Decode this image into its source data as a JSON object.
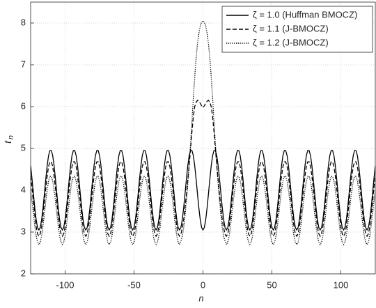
{
  "chart_data": {
    "type": "line",
    "xlabel": "n",
    "ylabel": [
      "t",
      "n"
    ],
    "xlim": [
      -125,
      125
    ],
    "xticks": [
      -100,
      -50,
      0,
      50,
      100
    ],
    "ylim": [
      2,
      8.5
    ],
    "yticks": [
      2,
      3,
      4,
      5,
      6,
      7,
      8
    ],
    "grid": true,
    "legend": "upper right",
    "x": [
      -125,
      -124,
      -123,
      -122,
      -121,
      -120,
      -119,
      -118,
      -117,
      -116,
      -115,
      -114,
      -113,
      -112,
      -111,
      -110,
      -109,
      -108,
      -107,
      -106,
      -105,
      -104,
      -103,
      -102,
      -101,
      -100,
      -99,
      -98,
      -97,
      -96,
      -95,
      -94,
      -93,
      -92,
      -91,
      -90,
      -89,
      -88,
      -87,
      -86,
      -85,
      -84,
      -83,
      -82,
      -81,
      -80,
      -79,
      -78,
      -77,
      -76,
      -75,
      -74,
      -73,
      -72,
      -71,
      -70,
      -69,
      -68,
      -67,
      -66,
      -65,
      -64,
      -63,
      -62,
      -61,
      -60,
      -59,
      -58,
      -57,
      -56,
      -55,
      -54,
      -53,
      -52,
      -51,
      -50,
      -49,
      -48,
      -47,
      -46,
      -45,
      -44,
      -43,
      -42,
      -41,
      -40,
      -39,
      -38,
      -37,
      -36,
      -35,
      -34,
      -33,
      -32,
      -31,
      -30,
      -29,
      -28,
      -27,
      -26,
      -25,
      -24,
      -23,
      -22,
      -21,
      -20,
      -19,
      -18,
      -17,
      -16,
      -15,
      -14,
      -13,
      -12,
      -11,
      -10,
      -9,
      -8,
      -7,
      -6,
      -5,
      -4,
      -3,
      -2,
      -1,
      0,
      1,
      2,
      3,
      4,
      5,
      6,
      7,
      8,
      9,
      10,
      11,
      12,
      13,
      14,
      15,
      16,
      17,
      18,
      19,
      20,
      21,
      22,
      23,
      24,
      25,
      26,
      27,
      28,
      29,
      30,
      31,
      32,
      33,
      34,
      35,
      36,
      37,
      38,
      39,
      40,
      41,
      42,
      43,
      44,
      45,
      46,
      47,
      48,
      49,
      50,
      51,
      52,
      53,
      54,
      55,
      56,
      57,
      58,
      59,
      60,
      61,
      62,
      63,
      64,
      65,
      66,
      67,
      68,
      69,
      70,
      71,
      72,
      73,
      74,
      75,
      76,
      77,
      78,
      79,
      80,
      81,
      82,
      83,
      84,
      85,
      86,
      87,
      88,
      89,
      90,
      91,
      92,
      93,
      94,
      95,
      96,
      97,
      98,
      99,
      100,
      101,
      102,
      103,
      104,
      105,
      106,
      107,
      108,
      109,
      110,
      111,
      112,
      113,
      114,
      115,
      116,
      117,
      118,
      119,
      120,
      121,
      122,
      123,
      124,
      125
    ],
    "series": [
      {
        "name": "ζ = 1.0 (Huffman BMOCZ)",
        "color": "#000000",
        "dash": "solid",
        "values": [
          4.59,
          4.27,
          3.92,
          3.58,
          3.3,
          3.11,
          3.05,
          3.11,
          3.3,
          3.58,
          3.92,
          4.27,
          4.59,
          4.83,
          4.95,
          4.95,
          4.83,
          4.59,
          4.27,
          3.92,
          3.58,
          3.3,
          3.11,
          3.05,
          3.11,
          3.3,
          3.58,
          3.92,
          4.27,
          4.59,
          4.83,
          4.95,
          4.95,
          4.83,
          4.59,
          4.27,
          3.92,
          3.58,
          3.3,
          3.11,
          3.05,
          3.11,
          3.3,
          3.58,
          3.92,
          4.27,
          4.59,
          4.83,
          4.95,
          4.95,
          4.83,
          4.59,
          4.27,
          3.92,
          3.58,
          3.3,
          3.11,
          3.05,
          3.11,
          3.3,
          3.58,
          3.92,
          4.27,
          4.59,
          4.83,
          4.95,
          4.95,
          4.83,
          4.59,
          4.27,
          3.92,
          3.58,
          3.3,
          3.11,
          3.05,
          3.11,
          3.3,
          3.58,
          3.92,
          4.27,
          4.59,
          4.83,
          4.95,
          4.95,
          4.83,
          4.59,
          4.27,
          3.92,
          3.58,
          3.3,
          3.11,
          3.05,
          3.11,
          3.3,
          3.58,
          3.92,
          4.27,
          4.59,
          4.83,
          4.95,
          4.95,
          4.83,
          4.59,
          4.27,
          3.92,
          3.58,
          3.3,
          3.11,
          3.05,
          3.11,
          3.3,
          3.58,
          3.92,
          4.27,
          4.59,
          4.83,
          4.95,
          4.95,
          4.83,
          4.59,
          4.27,
          3.92,
          3.58,
          3.3,
          3.11,
          3.05,
          3.11,
          3.3,
          3.58,
          3.92,
          4.27,
          4.59,
          4.83,
          4.95,
          4.95,
          4.83,
          4.59,
          4.27,
          3.92,
          3.58,
          3.3,
          3.11,
          3.05,
          3.11,
          3.3,
          3.58,
          3.92,
          4.27,
          4.59,
          4.83,
          4.95,
          4.95,
          4.83,
          4.59,
          4.27,
          3.92,
          3.58,
          3.3,
          3.11,
          3.05,
          3.11,
          3.3,
          3.58,
          3.92,
          4.27,
          4.59,
          4.83,
          4.95,
          4.95,
          4.83,
          4.59,
          4.27,
          3.92,
          3.58,
          3.3,
          3.11,
          3.05,
          3.11,
          3.3,
          3.58,
          3.92,
          4.27,
          4.59,
          4.83,
          4.95,
          4.95,
          4.83,
          4.59,
          4.27,
          3.92,
          3.58,
          3.3,
          3.11,
          3.05,
          3.11,
          3.3,
          3.58,
          3.92,
          4.27,
          4.59,
          4.83,
          4.95,
          4.95,
          4.83,
          4.59,
          4.27,
          3.92,
          3.58,
          3.3,
          3.11,
          3.05,
          3.11,
          3.3,
          3.58,
          3.92,
          4.27,
          4.59,
          4.83,
          4.95,
          4.95,
          4.83,
          4.59,
          4.27,
          3.92,
          3.58,
          3.3,
          3.11,
          3.05,
          3.11,
          3.3,
          3.58,
          3.92,
          4.27,
          4.59,
          4.83,
          4.95,
          4.95,
          4.83,
          4.59,
          4.27,
          3.92,
          3.58,
          3.3,
          3.11,
          3.05,
          3.11,
          3.3,
          3.58,
          3.92,
          4.27,
          4.59
        ]
      },
      {
        "name": "ζ = 1.1 (J-BMOCZ)",
        "color": "#000000",
        "dash": "dashed",
        "values": [
          4.34,
          4.05,
          3.72,
          3.4,
          3.13,
          2.96,
          2.9,
          2.96,
          3.13,
          3.4,
          3.72,
          4.05,
          4.34,
          4.57,
          4.68,
          4.68,
          4.57,
          4.34,
          4.05,
          3.72,
          3.4,
          3.13,
          2.96,
          2.9,
          2.96,
          3.13,
          3.4,
          3.72,
          4.05,
          4.34,
          4.57,
          4.68,
          4.68,
          4.57,
          4.34,
          4.05,
          3.72,
          3.4,
          3.13,
          2.96,
          2.9,
          2.96,
          3.13,
          3.4,
          3.72,
          4.05,
          4.34,
          4.57,
          4.68,
          4.68,
          4.57,
          4.34,
          4.05,
          3.72,
          3.4,
          3.13,
          2.96,
          2.9,
          2.96,
          3.13,
          3.4,
          3.72,
          4.05,
          4.34,
          4.57,
          4.68,
          4.68,
          4.57,
          4.34,
          4.05,
          3.72,
          3.4,
          3.13,
          2.96,
          2.9,
          2.96,
          3.13,
          3.4,
          3.72,
          4.05,
          4.34,
          4.57,
          4.68,
          4.68,
          4.57,
          4.34,
          4.05,
          3.72,
          3.4,
          3.13,
          2.96,
          2.9,
          2.96,
          3.13,
          3.4,
          3.72,
          4.05,
          4.34,
          4.57,
          4.68,
          4.68,
          4.57,
          4.34,
          4.05,
          3.72,
          3.4,
          3.13,
          2.96,
          2.9,
          2.95,
          3.1,
          3.3,
          3.6,
          3.9,
          4.25,
          4.6,
          5.0,
          5.4,
          5.75,
          6.0,
          6.1,
          6.15,
          6.13,
          6.08,
          6.02,
          5.98,
          6.02,
          6.08,
          6.13,
          6.15,
          6.1,
          6.0,
          5.75,
          5.4,
          5.0,
          4.6,
          4.25,
          3.9,
          3.6,
          3.3,
          3.1,
          2.95,
          2.9,
          2.96,
          3.13,
          3.4,
          3.72,
          4.05,
          4.34,
          4.57,
          4.68,
          4.68,
          4.57,
          4.34,
          4.05,
          3.72,
          3.4,
          3.13,
          2.96,
          2.9,
          2.96,
          3.13,
          3.4,
          3.72,
          4.05,
          4.34,
          4.57,
          4.68,
          4.68,
          4.57,
          4.34,
          4.05,
          3.72,
          3.4,
          3.13,
          2.96,
          2.9,
          2.96,
          3.13,
          3.4,
          3.72,
          4.05,
          4.34,
          4.57,
          4.68,
          4.68,
          4.57,
          4.34,
          4.05,
          3.72,
          3.4,
          3.13,
          2.96,
          2.9,
          2.96,
          3.13,
          3.4,
          3.72,
          4.05,
          4.34,
          4.57,
          4.68,
          4.68,
          4.57,
          4.34,
          4.05,
          3.72,
          3.4,
          3.13,
          2.96,
          2.9,
          2.96,
          3.13,
          3.4,
          3.72,
          4.05,
          4.34,
          4.57,
          4.68,
          4.68,
          4.57,
          4.34,
          4.05,
          3.72,
          3.4,
          3.13,
          2.96,
          2.9,
          2.96,
          3.13,
          3.4,
          3.72,
          4.05,
          4.34,
          4.57,
          4.68,
          4.68,
          4.57,
          4.34,
          4.05,
          3.72,
          3.4,
          3.13,
          2.96,
          2.9,
          2.96,
          3.13,
          3.4,
          3.72,
          4.05,
          4.34
        ]
      },
      {
        "name": "ζ = 1.2 (J-BMOCZ)",
        "color": "#000000",
        "dash": "dotted",
        "values": [
          4.01,
          3.74,
          3.44,
          3.15,
          2.91,
          2.76,
          2.7,
          2.76,
          2.91,
          3.15,
          3.44,
          3.74,
          4.01,
          4.22,
          4.33,
          4.33,
          4.22,
          4.01,
          3.74,
          3.44,
          3.15,
          2.91,
          2.76,
          2.7,
          2.76,
          2.91,
          3.15,
          3.44,
          3.74,
          4.01,
          4.22,
          4.33,
          4.33,
          4.22,
          4.01,
          3.74,
          3.44,
          3.15,
          2.91,
          2.76,
          2.7,
          2.76,
          2.91,
          3.15,
          3.44,
          3.74,
          4.01,
          4.22,
          4.33,
          4.33,
          4.22,
          4.01,
          3.74,
          3.44,
          3.15,
          2.91,
          2.76,
          2.7,
          2.76,
          2.91,
          3.15,
          3.44,
          3.74,
          4.01,
          4.22,
          4.33,
          4.33,
          4.22,
          4.01,
          3.74,
          3.44,
          3.15,
          2.91,
          2.76,
          2.7,
          2.76,
          2.91,
          3.15,
          3.44,
          3.74,
          4.01,
          4.22,
          4.33,
          4.33,
          4.22,
          4.01,
          3.74,
          3.44,
          3.15,
          2.91,
          2.76,
          2.7,
          2.76,
          2.91,
          3.15,
          3.44,
          3.74,
          4.01,
          4.22,
          4.33,
          4.33,
          4.22,
          4.01,
          3.74,
          3.44,
          3.15,
          2.91,
          2.76,
          2.7,
          2.78,
          2.9,
          3.1,
          3.4,
          3.75,
          4.15,
          4.6,
          5.1,
          5.65,
          6.2,
          6.7,
          7.15,
          7.5,
          7.75,
          7.92,
          8.02,
          8.05,
          8.02,
          7.92,
          7.75,
          7.5,
          7.15,
          6.7,
          6.2,
          5.65,
          5.1,
          4.6,
          4.15,
          3.75,
          3.4,
          3.1,
          2.9,
          2.78,
          2.7,
          2.76,
          2.91,
          3.15,
          3.44,
          3.74,
          4.01,
          4.22,
          4.33,
          4.33,
          4.22,
          4.01,
          3.74,
          3.44,
          3.15,
          2.91,
          2.76,
          2.7,
          2.76,
          2.91,
          3.15,
          3.44,
          3.74,
          4.01,
          4.22,
          4.33,
          4.33,
          4.22,
          4.01,
          3.74,
          3.44,
          3.15,
          2.91,
          2.76,
          2.7,
          2.76,
          2.91,
          3.15,
          3.44,
          3.74,
          4.01,
          4.22,
          4.33,
          4.33,
          4.22,
          4.01,
          3.74,
          3.44,
          3.15,
          2.91,
          2.76,
          2.7,
          2.76,
          2.91,
          3.15,
          3.44,
          3.74,
          4.01,
          4.22,
          4.33,
          4.33,
          4.22,
          4.01,
          3.74,
          3.44,
          3.15,
          2.91,
          2.76,
          2.7,
          2.76,
          2.91,
          3.15,
          3.44,
          3.74,
          4.01,
          4.22,
          4.33,
          4.33,
          4.22,
          4.01,
          3.74,
          3.44,
          3.15,
          2.91,
          2.76,
          2.7,
          2.76,
          2.91,
          3.15,
          3.44,
          3.74,
          4.01,
          4.22,
          4.33,
          4.33,
          4.22,
          4.01,
          3.74,
          3.44,
          3.15,
          2.91,
          2.76,
          2.7,
          2.76,
          2.91,
          3.15,
          3.44,
          3.74,
          4.01
        ]
      }
    ]
  }
}
